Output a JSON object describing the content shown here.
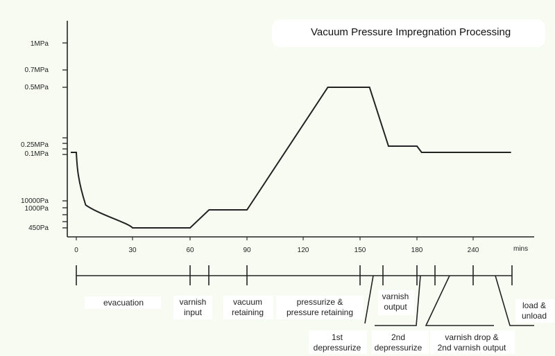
{
  "chart_data": {
    "type": "line",
    "title": "Vacuum Pressure Impregnation Processing",
    "xlabel": "mins",
    "ylabel": "",
    "x_ticks": [
      "0",
      "30",
      "60",
      "90",
      "120",
      "150",
      "180",
      "240"
    ],
    "y_ticks": [
      "1MPa",
      "0.7MPa",
      "0.5MPa",
      "0.25MPa",
      "0.1MPa",
      "10000Pa",
      "1000Pa",
      "450Pa"
    ],
    "series": [
      {
        "name": "",
        "points": [
          {
            "x": -2,
            "y": "0.1MPa"
          },
          {
            "x": 0,
            "y": "0.1MPa"
          },
          {
            "x": 5,
            "y": "7000Pa"
          },
          {
            "x": 15,
            "y": "2500Pa"
          },
          {
            "x": 30,
            "y": "450Pa"
          },
          {
            "x": 60,
            "y": "450Pa"
          },
          {
            "x": 70,
            "y": "1000Pa"
          },
          {
            "x": 90,
            "y": "1000Pa"
          },
          {
            "x": 133,
            "y": "0.5MPa"
          },
          {
            "x": 155,
            "y": "0.5MPa"
          },
          {
            "x": 165,
            "y": "0.15MPa"
          },
          {
            "x": 180,
            "y": "0.15MPa"
          },
          {
            "x": 185,
            "y": "0.1MPa"
          },
          {
            "x": 260,
            "y": "0.1MPa"
          }
        ]
      }
    ],
    "phases": [
      {
        "label": "evacuation"
      },
      {
        "label": "varnish input"
      },
      {
        "label": "vacuum retaining"
      },
      {
        "label": "pressurize & pressure retaining"
      },
      {
        "label": "1st depressurize"
      },
      {
        "label": "varnish output"
      },
      {
        "label": "2nd depressurize"
      },
      {
        "label": "varnish drop & 2nd varnish output"
      },
      {
        "label": "load & unload"
      }
    ],
    "grid": false,
    "legend": "none"
  }
}
